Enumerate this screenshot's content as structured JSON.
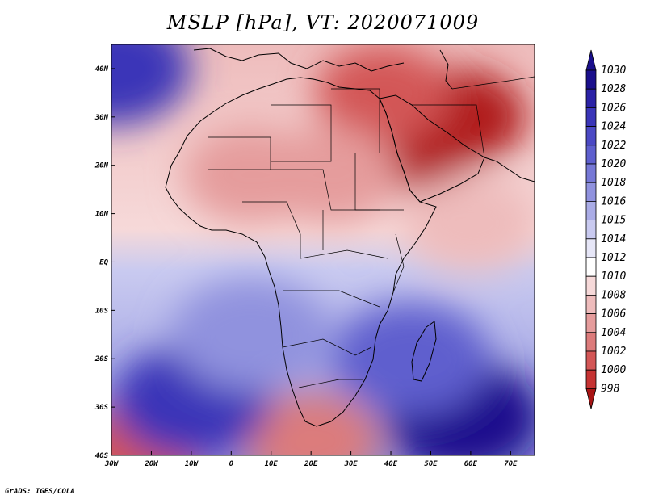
{
  "title": "MSLP [hPa], VT: 2020071009",
  "footer": "GrADS: IGES/COLA",
  "map": {
    "lon_range": [
      -30,
      76
    ],
    "lat_range": [
      -40,
      45
    ],
    "lat_ticks": [
      {
        "value": 40,
        "label": "40N"
      },
      {
        "value": 30,
        "label": "30N"
      },
      {
        "value": 20,
        "label": "20N"
      },
      {
        "value": 10,
        "label": "10N"
      },
      {
        "value": 0,
        "label": "EQ"
      },
      {
        "value": -10,
        "label": "10S"
      },
      {
        "value": -20,
        "label": "20S"
      },
      {
        "value": -30,
        "label": "30S"
      },
      {
        "value": -40,
        "label": "40S"
      }
    ],
    "lon_ticks": [
      {
        "value": -30,
        "label": "30W"
      },
      {
        "value": -20,
        "label": "20W"
      },
      {
        "value": -10,
        "label": "10W"
      },
      {
        "value": 0,
        "label": "0"
      },
      {
        "value": 10,
        "label": "10E"
      },
      {
        "value": 20,
        "label": "20E"
      },
      {
        "value": 30,
        "label": "30E"
      },
      {
        "value": 40,
        "label": "40E"
      },
      {
        "value": 50,
        "label": "50E"
      },
      {
        "value": 60,
        "label": "60E"
      },
      {
        "value": 70,
        "label": "70E"
      }
    ]
  },
  "colorbar": {
    "levels": [
      {
        "label": "1030",
        "color": "#1a0f8c"
      },
      {
        "label": "1028",
        "color": "#2b22a6"
      },
      {
        "label": "1026",
        "color": "#3a35b8"
      },
      {
        "label": "1024",
        "color": "#4b49c4"
      },
      {
        "label": "1022",
        "color": "#5e5fce"
      },
      {
        "label": "1020",
        "color": "#7678d6"
      },
      {
        "label": "1018",
        "color": "#9092de"
      },
      {
        "label": "1016",
        "color": "#aaace6"
      },
      {
        "label": "1015",
        "color": "#c9caf0"
      },
      {
        "label": "1014",
        "color": "#e6e6f7"
      },
      {
        "label": "1012",
        "color": "#ffffff"
      },
      {
        "label": "1010",
        "color": "#f6d9d9"
      },
      {
        "label": "1008",
        "color": "#eebcbc"
      },
      {
        "label": "1006",
        "color": "#e59c9c"
      },
      {
        "label": "1004",
        "color": "#dc7b7b"
      },
      {
        "label": "1002",
        "color": "#d35656"
      },
      {
        "label": "1000",
        "color": "#c63333"
      },
      {
        "label": "998",
        "color": "#b01c1c"
      }
    ],
    "top_color": "#1a0f8c",
    "bottom_color": "#a81414"
  },
  "pressure_fields": [
    {
      "kind": "low",
      "lon": 45,
      "lat": 25,
      "value": 998
    },
    {
      "kind": "low",
      "lon": 57,
      "lat": 30,
      "value": 998
    },
    {
      "kind": "low",
      "lon": 38,
      "lat": 35,
      "value": 1002
    },
    {
      "kind": "low",
      "lon": 5,
      "lat": 18,
      "value": 1006
    },
    {
      "kind": "low",
      "lon": 25,
      "lat": 18,
      "value": 1006
    },
    {
      "kind": "low",
      "lon": 60,
      "lat": 8,
      "value": 1008
    },
    {
      "kind": "low",
      "lon": 20,
      "lat": -37,
      "value": 1004
    },
    {
      "kind": "low",
      "lon": -25,
      "lat": -40,
      "value": 1002
    },
    {
      "kind": "high",
      "lon": -30,
      "lat": 40,
      "value": 1026
    },
    {
      "kind": "high",
      "lon": -10,
      "lat": -29,
      "value": 1026
    },
    {
      "kind": "high",
      "lon": 58,
      "lat": -32,
      "value": 1030
    },
    {
      "kind": "high",
      "lon": 5,
      "lat": -15,
      "value": 1018
    },
    {
      "kind": "high",
      "lon": 45,
      "lat": -20,
      "value": 1022
    }
  ]
}
